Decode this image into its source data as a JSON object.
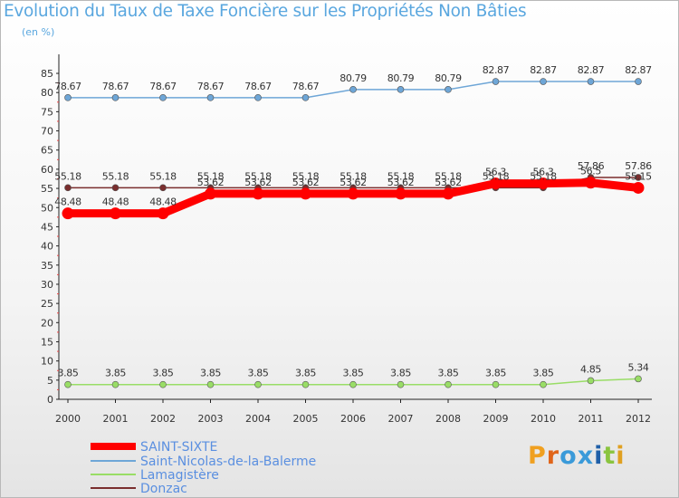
{
  "chart_data": {
    "type": "line",
    "title": "Evolution du Taux de Taxe Foncière sur les Propriétés Non Bâties",
    "ylabel": "(en %)",
    "xlabel": "",
    "categories": [
      "2000",
      "2001",
      "2002",
      "2003",
      "2004",
      "2005",
      "2006",
      "2007",
      "2008",
      "2009",
      "2010",
      "2011",
      "2012"
    ],
    "ylim": [
      0,
      85
    ],
    "yticks": [
      0,
      5,
      10,
      15,
      20,
      25,
      30,
      35,
      40,
      45,
      50,
      55,
      60,
      65,
      70,
      75,
      80,
      85
    ],
    "grid": false,
    "legend_position": "bottom-left",
    "series": [
      {
        "name": "SAINT-SIXTE",
        "color": "#ff0000",
        "values": [
          48.48,
          48.48,
          48.48,
          53.62,
          53.62,
          53.62,
          53.62,
          53.62,
          53.62,
          56.3,
          56.3,
          56.5,
          55.15
        ],
        "labels": [
          "48.48",
          "48.48",
          "48.48",
          "53.62",
          "53.62",
          "53.62",
          "53.62",
          "53.62",
          "53.62",
          "56.3",
          "56.3",
          "56.5",
          "55.15"
        ]
      },
      {
        "name": "Saint-Nicolas-de-la-Balerme",
        "color": "#6ea6d7",
        "values": [
          78.67,
          78.67,
          78.67,
          78.67,
          78.67,
          78.67,
          80.79,
          80.79,
          80.79,
          82.87,
          82.87,
          82.87,
          82.87
        ],
        "labels": [
          "78.67",
          "78.67",
          "78.67",
          "78.67",
          "78.67",
          "78.67",
          "80.79",
          "80.79",
          "80.79",
          "82.87",
          "82.87",
          "82.87",
          "82.87"
        ]
      },
      {
        "name": "Lamagistère",
        "color": "#99dd66",
        "values": [
          3.85,
          3.85,
          3.85,
          3.85,
          3.85,
          3.85,
          3.85,
          3.85,
          3.85,
          3.85,
          3.85,
          4.85,
          5.34
        ],
        "labels": [
          "3.85",
          "3.85",
          "3.85",
          "3.85",
          "3.85",
          "3.85",
          "3.85",
          "3.85",
          "3.85",
          "3.85",
          "3.85",
          "4.85",
          "5.34"
        ]
      },
      {
        "name": "Donzac",
        "color": "#7a2e2e",
        "values": [
          55.18,
          55.18,
          55.18,
          55.18,
          55.18,
          55.18,
          55.18,
          55.18,
          55.18,
          55.18,
          55.18,
          57.86,
          57.86
        ],
        "labels": [
          "55.18",
          "55.18",
          "55.18",
          "55.18",
          "55.18",
          "55.18",
          "55.18",
          "55.18",
          "55.18",
          "55.18",
          "55.18",
          "57.86",
          "57.86"
        ]
      }
    ]
  },
  "logo": {
    "text": "Proxiti",
    "letters": [
      "P",
      "r",
      "o",
      "x",
      "i",
      "t",
      "i"
    ]
  },
  "colors": {
    "title": "#5aa7df",
    "axis": "#222222",
    "tick_marks": "#ee4444",
    "legend_text": "#5a8fe0"
  }
}
